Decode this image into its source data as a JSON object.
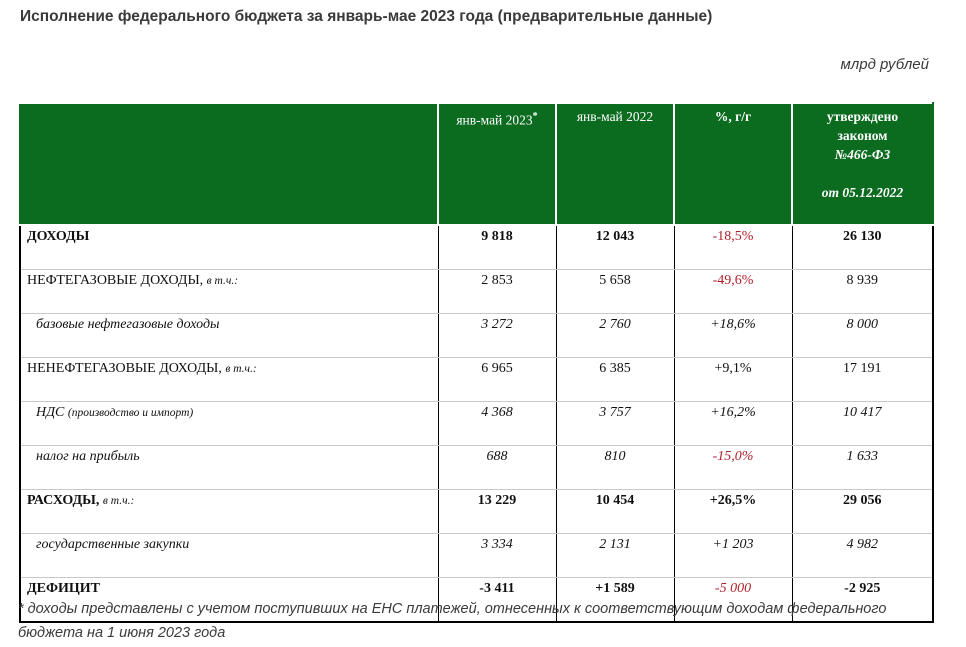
{
  "title": "Исполнение федерального бюджета за январь-мае 2023 года (предварительные данные)",
  "unit": "млрд рублей",
  "headers": {
    "col_2023": "янв-май 2023",
    "col_2023_mark": "*",
    "col_2022": "янв-май 2022",
    "col_pct": "%, г/г",
    "col_law_line1": "утверждено",
    "col_law_line2": "законом",
    "col_law_line3": "№466-ФЗ",
    "col_law_line4": "от 05.12.2022"
  },
  "rows": [
    {
      "label": "ДОХОДЫ",
      "note": "",
      "v2023": "9 818",
      "v2022": "12 043",
      "pct": "-18,5%",
      "law": "26 130"
    },
    {
      "label": "НЕФТЕГАЗОВЫЕ ДОХОДЫ,",
      "note": "в т.ч.:",
      "v2023": "2 853",
      "v2022": "5 658",
      "pct": "-49,6%",
      "law": "8 939"
    },
    {
      "label": "базовые нефтегазовые доходы",
      "note": "",
      "v2023": "3 272",
      "v2022": "2 760",
      "pct": "+18,6%",
      "law": "8 000"
    },
    {
      "label": "НЕНЕФТЕГАЗОВЫЕ ДОХОДЫ,",
      "note": "в т.ч.:",
      "v2023": "6 965",
      "v2022": "6 385",
      "pct": "+9,1%",
      "law": "17 191"
    },
    {
      "label": "НДС",
      "note": "(производство и импорт)",
      "v2023": "4 368",
      "v2022": "3 757",
      "pct": "+16,2%",
      "law": "10 417"
    },
    {
      "label": "налог на прибыль",
      "note": "",
      "v2023": "688",
      "v2022": "810",
      "pct": "-15,0%",
      "law": "1 633"
    },
    {
      "label": "РАСХОДЫ,",
      "note": "в т.ч.:",
      "v2023": "13 229",
      "v2022": "10 454",
      "pct": "+26,5%",
      "law": "29 056"
    },
    {
      "label": "государственные закупки",
      "note": "",
      "v2023": "3 334",
      "v2022": "2 131",
      "pct": "+1 203",
      "law": "4 982"
    },
    {
      "label": "ДЕФИЦИТ",
      "note": "",
      "v2023": "-3 411",
      "v2022": "+1 589",
      "pct": "-5 000",
      "law": "-2 925"
    }
  ],
  "footnote": "* доходы представлены с учетом поступивших на ЕНС платежей, отнесенных к соответствующим доходам федерального бюджета на 1 июня 2023 года",
  "colors": {
    "header_bg": "#0b6b1f",
    "negative_pct": "#b0202a"
  }
}
